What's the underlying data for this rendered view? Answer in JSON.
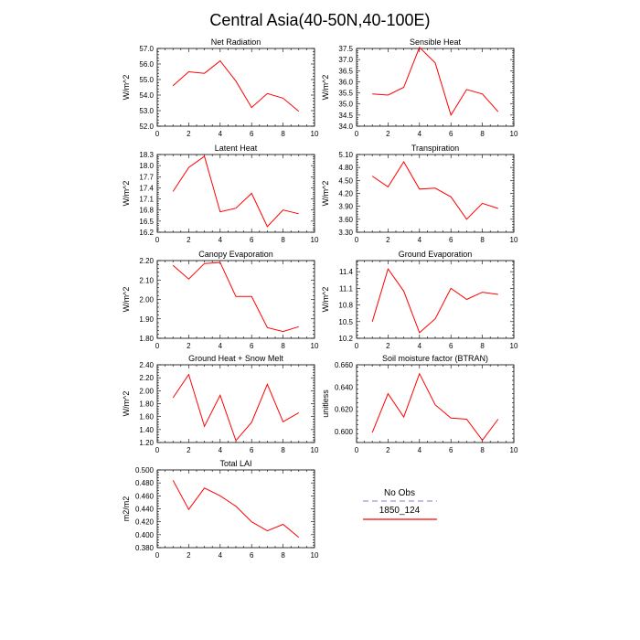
{
  "figure": {
    "title": "Central Asia(40-50N,40-100E)"
  },
  "legend": {
    "entries": [
      {
        "label": "No Obs",
        "color": "#9999dd",
        "dash": true
      },
      {
        "label": "1850_124",
        "color": "#ff0000",
        "dash": false
      }
    ]
  },
  "chart_data": [
    {
      "type": "line",
      "title": "Net Radiation",
      "ylabel": "W/m^2",
      "xlim": [
        0,
        10
      ],
      "xticks": [
        0,
        2,
        4,
        6,
        8,
        10
      ],
      "ylim": [
        52.0,
        57.0
      ],
      "yticks": [
        "52.0",
        "53.0",
        "54.0",
        "55.0",
        "56.0",
        "57.0"
      ],
      "series": [
        {
          "name": "1850_124",
          "color": "#ff0000",
          "x": [
            1,
            2,
            3,
            4,
            5,
            6,
            7,
            8,
            9
          ],
          "y": [
            54.6,
            55.5,
            55.4,
            56.2,
            54.9,
            53.2,
            54.1,
            53.8,
            52.95
          ]
        }
      ]
    },
    {
      "type": "line",
      "title": "Sensible Heat",
      "ylabel": "W/m^2",
      "xlim": [
        0,
        10
      ],
      "xticks": [
        0,
        2,
        4,
        6,
        8,
        10
      ],
      "ylim": [
        34.0,
        37.5
      ],
      "yticks": [
        "34.0",
        "34.5",
        "35.0",
        "35.5",
        "36.0",
        "36.5",
        "37.0",
        "37.5"
      ],
      "series": [
        {
          "name": "1850_124",
          "color": "#ff0000",
          "x": [
            1,
            2,
            3,
            4,
            5,
            6,
            7,
            8,
            9
          ],
          "y": [
            35.45,
            35.4,
            35.75,
            37.55,
            36.85,
            34.5,
            35.65,
            35.45,
            34.65
          ]
        }
      ]
    },
    {
      "type": "line",
      "title": "Latent Heat",
      "ylabel": "W/m^2",
      "xlim": [
        0,
        10
      ],
      "xticks": [
        0,
        2,
        4,
        6,
        8,
        10
      ],
      "ylim": [
        16.2,
        18.3
      ],
      "yticks": [
        "16.2",
        "16.5",
        "16.8",
        "17.1",
        "17.4",
        "17.7",
        "18.0",
        "18.3"
      ],
      "series": [
        {
          "name": "1850_124",
          "color": "#ff0000",
          "x": [
            1,
            2,
            3,
            4,
            5,
            6,
            7,
            8,
            9
          ],
          "y": [
            17.3,
            17.95,
            18.25,
            16.75,
            16.85,
            17.25,
            16.35,
            16.8,
            16.7
          ]
        }
      ]
    },
    {
      "type": "line",
      "title": "Transpiration",
      "ylabel": "W/m^2",
      "xlim": [
        0,
        10
      ],
      "xticks": [
        0,
        2,
        4,
        6,
        8,
        10
      ],
      "ylim": [
        3.3,
        5.1
      ],
      "yticks": [
        "3.30",
        "3.60",
        "3.90",
        "4.20",
        "4.50",
        "4.80",
        "5.10"
      ],
      "series": [
        {
          "name": "1850_124",
          "color": "#ff0000",
          "x": [
            1,
            2,
            3,
            4,
            5,
            6,
            7,
            8,
            9
          ],
          "y": [
            4.6,
            4.35,
            4.93,
            4.3,
            4.32,
            4.12,
            3.6,
            3.97,
            3.85
          ]
        }
      ]
    },
    {
      "type": "line",
      "title": "Canopy Evaporation",
      "ylabel": "W/m^2",
      "xlim": [
        0,
        10
      ],
      "xticks": [
        0,
        2,
        4,
        6,
        8,
        10
      ],
      "ylim": [
        1.8,
        2.2
      ],
      "yticks": [
        "1.80",
        "1.90",
        "2.00",
        "2.10",
        "2.20"
      ],
      "series": [
        {
          "name": "1850_124",
          "color": "#ff0000",
          "x": [
            1,
            2,
            3,
            4,
            5,
            6,
            7,
            8,
            9
          ],
          "y": [
            2.175,
            2.105,
            2.185,
            2.19,
            2.015,
            2.015,
            1.855,
            1.835,
            1.86
          ]
        }
      ]
    },
    {
      "type": "line",
      "title": "Ground Evaporation",
      "ylabel": "W/m^2",
      "xlim": [
        0,
        10
      ],
      "xticks": [
        0,
        2,
        4,
        6,
        8,
        10
      ],
      "ylim": [
        10.2,
        11.6
      ],
      "yticks": [
        "10.2",
        "10.5",
        "10.8",
        "11.1",
        "11.4"
      ],
      "series": [
        {
          "name": "1850_124",
          "color": "#ff0000",
          "x": [
            1,
            2,
            3,
            4,
            5,
            6,
            7,
            8,
            9
          ],
          "y": [
            10.5,
            11.45,
            11.05,
            10.3,
            10.55,
            11.1,
            10.9,
            11.03,
            10.99
          ]
        }
      ]
    },
    {
      "type": "line",
      "title": "Ground Heat + Snow Melt",
      "ylabel": "W/m^2",
      "xlim": [
        0,
        10
      ],
      "xticks": [
        0,
        2,
        4,
        6,
        8,
        10
      ],
      "ylim": [
        1.2,
        2.4
      ],
      "yticks": [
        "1.20",
        "1.40",
        "1.60",
        "1.80",
        "2.00",
        "2.20",
        "2.40"
      ],
      "series": [
        {
          "name": "1850_124",
          "color": "#ff0000",
          "x": [
            1,
            2,
            3,
            4,
            5,
            6,
            7,
            8,
            9
          ],
          "y": [
            1.89,
            2.25,
            1.45,
            1.93,
            1.23,
            1.51,
            2.1,
            1.52,
            1.66
          ]
        }
      ]
    },
    {
      "type": "line",
      "title": "Soil moisture factor (BTRAN)",
      "ylabel": "unitless",
      "xlim": [
        0,
        10
      ],
      "xticks": [
        0,
        2,
        4,
        6,
        8,
        10
      ],
      "ylim": [
        0.59,
        0.66
      ],
      "yticks": [
        "0.600",
        "0.620",
        "0.640",
        "0.660"
      ],
      "series": [
        {
          "name": "1850_124",
          "color": "#ff0000",
          "x": [
            1,
            2,
            3,
            4,
            5,
            6,
            7,
            8,
            9
          ],
          "y": [
            0.599,
            0.634,
            0.613,
            0.652,
            0.624,
            0.612,
            0.611,
            0.592,
            0.611
          ]
        }
      ]
    },
    {
      "type": "line",
      "title": "Total LAI",
      "ylabel": "m2/m2",
      "xlim": [
        0,
        10
      ],
      "xticks": [
        0,
        2,
        4,
        6,
        8,
        10
      ],
      "ylim": [
        0.38,
        0.5
      ],
      "yticks": [
        "0.380",
        "0.400",
        "0.420",
        "0.440",
        "0.460",
        "0.480",
        "0.500"
      ],
      "series": [
        {
          "name": "1850_124",
          "color": "#ff0000",
          "x": [
            1,
            2,
            3,
            4,
            5,
            6,
            7,
            8,
            9
          ],
          "y": [
            0.484,
            0.439,
            0.472,
            0.46,
            0.444,
            0.42,
            0.406,
            0.416,
            0.396
          ]
        }
      ]
    }
  ]
}
